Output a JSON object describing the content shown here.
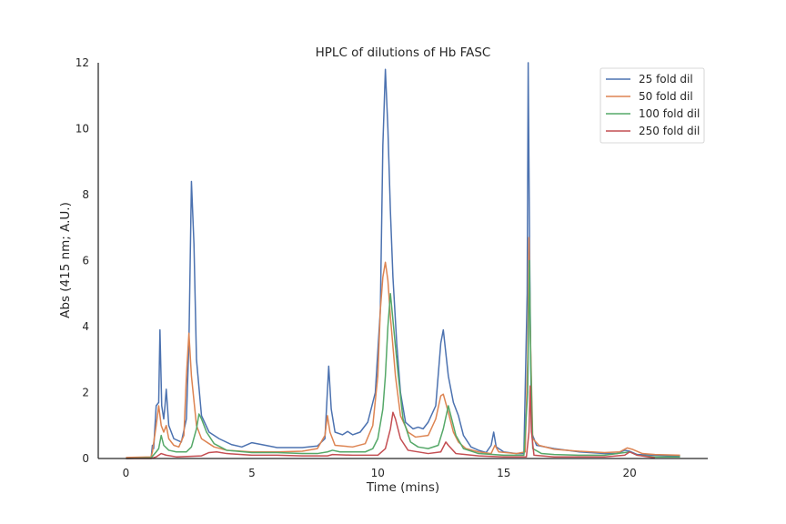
{
  "chart_data": {
    "type": "line",
    "title": "HPLC of dilutions of Hb FASC",
    "xlabel": "Time (mins)",
    "ylabel": "Abs (415 nm; A.U.)",
    "xlim": [
      -1.1,
      23.1
    ],
    "ylim": [
      0,
      12
    ],
    "xticks": [
      0,
      5,
      10,
      15,
      20
    ],
    "yticks": [
      0,
      2,
      4,
      6,
      8,
      10,
      12
    ],
    "grid": false,
    "legend_position": "top-right",
    "series": [
      {
        "name": "25 fold dil",
        "color": "#4c72b0",
        "points": [
          [
            0,
            0
          ],
          [
            1.0,
            0.02
          ],
          [
            1.05,
            0.4
          ],
          [
            1.1,
            0.3
          ],
          [
            1.2,
            1.6
          ],
          [
            1.3,
            1.7
          ],
          [
            1.35,
            3.9
          ],
          [
            1.42,
            1.6
          ],
          [
            1.5,
            1.2
          ],
          [
            1.55,
            1.6
          ],
          [
            1.6,
            2.1
          ],
          [
            1.7,
            1.0
          ],
          [
            1.9,
            0.6
          ],
          [
            2.2,
            0.5
          ],
          [
            2.4,
            1.2
          ],
          [
            2.5,
            3.5
          ],
          [
            2.6,
            8.4
          ],
          [
            2.7,
            6.5
          ],
          [
            2.8,
            3.0
          ],
          [
            3.0,
            1.3
          ],
          [
            3.3,
            0.8
          ],
          [
            3.7,
            0.6
          ],
          [
            4.2,
            0.42
          ],
          [
            4.6,
            0.35
          ],
          [
            5.0,
            0.48
          ],
          [
            5.4,
            0.42
          ],
          [
            6.0,
            0.33
          ],
          [
            7.0,
            0.33
          ],
          [
            7.6,
            0.38
          ],
          [
            7.9,
            0.6
          ],
          [
            8.05,
            2.8
          ],
          [
            8.15,
            1.5
          ],
          [
            8.3,
            0.8
          ],
          [
            8.6,
            0.72
          ],
          [
            8.8,
            0.82
          ],
          [
            9.0,
            0.72
          ],
          [
            9.3,
            0.8
          ],
          [
            9.6,
            1.1
          ],
          [
            9.9,
            2.0
          ],
          [
            10.1,
            4.5
          ],
          [
            10.2,
            9.5
          ],
          [
            10.3,
            11.8
          ],
          [
            10.4,
            10.0
          ],
          [
            10.5,
            7.5
          ],
          [
            10.6,
            5.5
          ],
          [
            10.75,
            3.5
          ],
          [
            10.9,
            2.0
          ],
          [
            11.1,
            1.1
          ],
          [
            11.4,
            0.9
          ],
          [
            11.6,
            0.95
          ],
          [
            11.8,
            0.9
          ],
          [
            12.0,
            1.1
          ],
          [
            12.3,
            1.6
          ],
          [
            12.5,
            3.5
          ],
          [
            12.6,
            3.9
          ],
          [
            12.8,
            2.5
          ],
          [
            13.0,
            1.7
          ],
          [
            13.2,
            1.3
          ],
          [
            13.4,
            0.7
          ],
          [
            13.7,
            0.35
          ],
          [
            14.0,
            0.25
          ],
          [
            14.3,
            0.18
          ],
          [
            14.5,
            0.4
          ],
          [
            14.6,
            0.8
          ],
          [
            14.7,
            0.35
          ],
          [
            15.0,
            0.2
          ],
          [
            15.5,
            0.15
          ],
          [
            15.8,
            0.15
          ],
          [
            15.93,
            5.0
          ],
          [
            15.97,
            12.0
          ],
          [
            16.03,
            6.0
          ],
          [
            16.1,
            0.8
          ],
          [
            16.3,
            0.4
          ],
          [
            17,
            0.3
          ],
          [
            18,
            0.2
          ],
          [
            19,
            0.15
          ],
          [
            19.5,
            0.15
          ],
          [
            19.8,
            0.25
          ],
          [
            20,
            0.22
          ],
          [
            20.3,
            0.12
          ],
          [
            21,
            0.1
          ],
          [
            22,
            0.08
          ]
        ]
      },
      {
        "name": "50 fold dil",
        "color": "#dd8452",
        "points": [
          [
            0,
            0.03
          ],
          [
            1.0,
            0.05
          ],
          [
            1.05,
            0.2
          ],
          [
            1.2,
            1.0
          ],
          [
            1.3,
            1.6
          ],
          [
            1.4,
            1.0
          ],
          [
            1.5,
            0.8
          ],
          [
            1.6,
            1.0
          ],
          [
            1.7,
            0.6
          ],
          [
            1.9,
            0.4
          ],
          [
            2.1,
            0.35
          ],
          [
            2.3,
            0.7
          ],
          [
            2.4,
            2.5
          ],
          [
            2.5,
            3.8
          ],
          [
            2.6,
            2.5
          ],
          [
            2.8,
            1.0
          ],
          [
            3.0,
            0.6
          ],
          [
            3.5,
            0.35
          ],
          [
            4.0,
            0.25
          ],
          [
            5.0,
            0.2
          ],
          [
            6.0,
            0.2
          ],
          [
            7.0,
            0.22
          ],
          [
            7.6,
            0.3
          ],
          [
            7.9,
            0.7
          ],
          [
            8.0,
            1.3
          ],
          [
            8.1,
            0.8
          ],
          [
            8.3,
            0.4
          ],
          [
            9.0,
            0.35
          ],
          [
            9.5,
            0.45
          ],
          [
            9.8,
            1.0
          ],
          [
            10.0,
            2.5
          ],
          [
            10.1,
            4.5
          ],
          [
            10.2,
            5.5
          ],
          [
            10.3,
            5.95
          ],
          [
            10.4,
            5.4
          ],
          [
            10.5,
            4.3
          ],
          [
            10.7,
            2.5
          ],
          [
            10.9,
            1.3
          ],
          [
            11.2,
            0.8
          ],
          [
            11.5,
            0.65
          ],
          [
            12.0,
            0.7
          ],
          [
            12.3,
            1.2
          ],
          [
            12.5,
            1.9
          ],
          [
            12.6,
            1.95
          ],
          [
            12.8,
            1.4
          ],
          [
            13.0,
            0.8
          ],
          [
            13.2,
            0.5
          ],
          [
            13.5,
            0.3
          ],
          [
            14.0,
            0.2
          ],
          [
            14.5,
            0.15
          ],
          [
            14.65,
            0.4
          ],
          [
            14.8,
            0.2
          ],
          [
            15.5,
            0.15
          ],
          [
            15.85,
            0.2
          ],
          [
            15.95,
            3.0
          ],
          [
            16.0,
            6.7
          ],
          [
            16.05,
            4.0
          ],
          [
            16.15,
            0.6
          ],
          [
            16.4,
            0.4
          ],
          [
            17,
            0.28
          ],
          [
            18,
            0.22
          ],
          [
            19,
            0.18
          ],
          [
            19.6,
            0.2
          ],
          [
            19.9,
            0.32
          ],
          [
            20.1,
            0.28
          ],
          [
            20.5,
            0.15
          ],
          [
            21,
            0.12
          ],
          [
            22,
            0.1
          ]
        ]
      },
      {
        "name": "100 fold dil",
        "color": "#55a868",
        "points": [
          [
            0,
            0
          ],
          [
            1.0,
            0.02
          ],
          [
            1.2,
            0.2
          ],
          [
            1.3,
            0.3
          ],
          [
            1.4,
            0.7
          ],
          [
            1.5,
            0.4
          ],
          [
            1.7,
            0.25
          ],
          [
            2.0,
            0.2
          ],
          [
            2.4,
            0.2
          ],
          [
            2.6,
            0.35
          ],
          [
            2.8,
            0.9
          ],
          [
            2.9,
            1.35
          ],
          [
            3.0,
            1.2
          ],
          [
            3.2,
            0.8
          ],
          [
            3.5,
            0.45
          ],
          [
            4.0,
            0.25
          ],
          [
            5.0,
            0.18
          ],
          [
            6.0,
            0.18
          ],
          [
            7.0,
            0.15
          ],
          [
            7.6,
            0.15
          ],
          [
            8.0,
            0.2
          ],
          [
            8.2,
            0.25
          ],
          [
            8.5,
            0.2
          ],
          [
            9.0,
            0.2
          ],
          [
            9.5,
            0.2
          ],
          [
            9.8,
            0.3
          ],
          [
            10.0,
            0.6
          ],
          [
            10.2,
            1.5
          ],
          [
            10.3,
            2.5
          ],
          [
            10.4,
            4.0
          ],
          [
            10.5,
            5.0
          ],
          [
            10.6,
            4.2
          ],
          [
            10.8,
            2.6
          ],
          [
            11.0,
            1.2
          ],
          [
            11.3,
            0.5
          ],
          [
            11.6,
            0.35
          ],
          [
            12.0,
            0.3
          ],
          [
            12.4,
            0.4
          ],
          [
            12.6,
            0.9
          ],
          [
            12.8,
            1.6
          ],
          [
            12.9,
            1.3
          ],
          [
            13.1,
            0.7
          ],
          [
            13.4,
            0.3
          ],
          [
            14.0,
            0.15
          ],
          [
            15.0,
            0.1
          ],
          [
            15.8,
            0.1
          ],
          [
            15.95,
            2.0
          ],
          [
            16.02,
            6.0
          ],
          [
            16.07,
            3.0
          ],
          [
            16.15,
            0.3
          ],
          [
            16.5,
            0.15
          ],
          [
            17,
            0.12
          ],
          [
            18,
            0.1
          ],
          [
            19,
            0.1
          ],
          [
            20,
            0.2
          ],
          [
            20.3,
            0.1
          ],
          [
            21,
            0.05
          ],
          [
            22,
            0.05
          ]
        ]
      },
      {
        "name": "250 fold dil",
        "color": "#c44e52",
        "points": [
          [
            0,
            0
          ],
          [
            1.0,
            0
          ],
          [
            1.2,
            0.05
          ],
          [
            1.4,
            0.15
          ],
          [
            1.6,
            0.1
          ],
          [
            2.0,
            0.05
          ],
          [
            3.0,
            0.08
          ],
          [
            3.3,
            0.18
          ],
          [
            3.6,
            0.2
          ],
          [
            4.0,
            0.15
          ],
          [
            5.0,
            0.1
          ],
          [
            6.0,
            0.1
          ],
          [
            7.0,
            0.08
          ],
          [
            8.0,
            0.08
          ],
          [
            8.2,
            0.12
          ],
          [
            9.0,
            0.1
          ],
          [
            10.0,
            0.1
          ],
          [
            10.3,
            0.3
          ],
          [
            10.5,
            0.9
          ],
          [
            10.6,
            1.4
          ],
          [
            10.7,
            1.2
          ],
          [
            10.9,
            0.6
          ],
          [
            11.2,
            0.25
          ],
          [
            12.0,
            0.15
          ],
          [
            12.5,
            0.2
          ],
          [
            12.7,
            0.5
          ],
          [
            12.8,
            0.4
          ],
          [
            13.1,
            0.15
          ],
          [
            14.0,
            0.08
          ],
          [
            15.0,
            0.05
          ],
          [
            15.9,
            0.05
          ],
          [
            16.0,
            0.8
          ],
          [
            16.05,
            2.2
          ],
          [
            16.1,
            0.8
          ],
          [
            16.2,
            0.1
          ],
          [
            17,
            0.05
          ],
          [
            19,
            0.05
          ],
          [
            19.8,
            0.1
          ],
          [
            20,
            0.2
          ],
          [
            20.3,
            0.1
          ],
          [
            21,
            0.02
          ]
        ]
      }
    ]
  }
}
